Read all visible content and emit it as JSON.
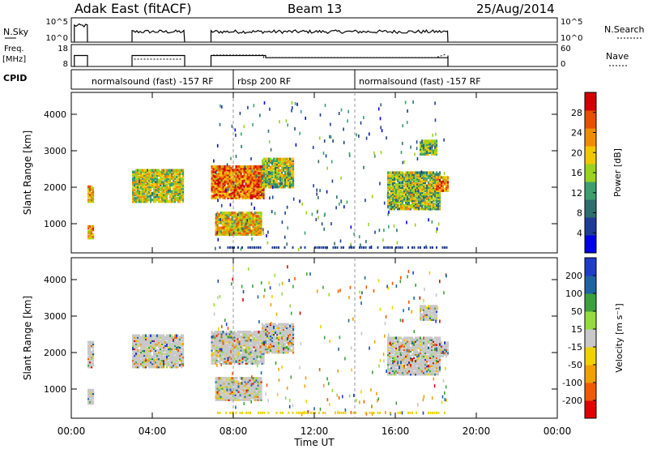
{
  "header": {
    "station": "Adak East (fitACF)",
    "beam": "Beam 13",
    "date": "25/Aug/2014"
  },
  "panels": {
    "nsky": {
      "label": "N.Sky",
      "ticks": [
        "10^5",
        "10^0"
      ],
      "right_label": "N.Search",
      "right_ticks": [
        "10^5",
        "10^0"
      ]
    },
    "freq": {
      "label_line1": "Freq.",
      "label_line2": "[MHz]",
      "ticks": [
        "18",
        "8"
      ],
      "right_label": "Nave",
      "right_ticks": [
        "60",
        "0"
      ]
    },
    "cpid": {
      "label": "CPID",
      "segments": [
        {
          "text": "normalsound (fast) -157 RF",
          "start": 0.8
        },
        {
          "text": "rbsp 200 RF",
          "start": 8.0
        },
        {
          "text": "normalsound (fast) -157 RF",
          "start": 14.0
        }
      ]
    }
  },
  "colors": {
    "power": [
      "#0000e6",
      "#1e3c96",
      "#2e6e6e",
      "#3e9e6e",
      "#9ad21e",
      "#f0c800",
      "#f08c00",
      "#e65000",
      "#d20000"
    ],
    "velocity": [
      "#e00000",
      "#f05a00",
      "#f0a000",
      "#f0d200",
      "#c8c8c8",
      "#96dc3c",
      "#3ca03c",
      "#1e64a0",
      "#1e3cc8"
    ]
  },
  "chart_data": [
    {
      "type": "heatmap",
      "ylabel": "Slant Range [km]",
      "yticks": [
        "4000",
        "3000",
        "2000",
        "1000"
      ],
      "ylim": [
        200,
        4600
      ],
      "xlim": [
        0,
        24
      ],
      "colorbar": {
        "label": "Power [dB]",
        "ticks": [
          "28",
          "24",
          "20",
          "16",
          "12",
          "8",
          "4"
        ],
        "range": [
          0,
          32
        ]
      },
      "regions": [
        {
          "x": [
            0.8,
            1.1
          ],
          "y": [
            1600,
            2050
          ],
          "level": 0.65
        },
        {
          "x": [
            0.8,
            1.1
          ],
          "y": [
            600,
            950
          ],
          "level": 0.7
        },
        {
          "x": [
            3.0,
            5.5
          ],
          "y": [
            1600,
            2500
          ],
          "level": 0.55
        },
        {
          "x": [
            6.9,
            9.5
          ],
          "y": [
            1700,
            2600
          ],
          "level": 0.8
        },
        {
          "x": [
            7.1,
            9.4
          ],
          "y": [
            700,
            1300
          ],
          "level": 0.65
        },
        {
          "x": [
            9.4,
            11.0
          ],
          "y": [
            2000,
            2800
          ],
          "level": 0.5
        },
        {
          "x": [
            15.6,
            18.2
          ],
          "y": [
            1400,
            2400
          ],
          "level": 0.5
        },
        {
          "x": [
            17.2,
            18.0
          ],
          "y": [
            2900,
            3300
          ],
          "level": 0.45
        },
        {
          "x": [
            18.0,
            18.6
          ],
          "y": [
            1900,
            2300
          ],
          "level": 0.75
        }
      ]
    },
    {
      "type": "heatmap",
      "ylabel": "Slant Range [km]",
      "xlabel": "Time UT",
      "yticks": [
        "4000",
        "3000",
        "2000",
        "1000"
      ],
      "ylim": [
        200,
        4600
      ],
      "xlim": [
        0,
        24
      ],
      "xticks": [
        "00:00",
        "04:00",
        "08:00",
        "12:00",
        "16:00",
        "20:00",
        "00:00"
      ],
      "colorbar": {
        "label": "Velocity [m s⁻¹]",
        "ticks": [
          "200",
          "100",
          "50",
          "15",
          "-15",
          "-50",
          "-100",
          "-200"
        ],
        "range": [
          -250,
          250
        ]
      },
      "regions": [
        {
          "x": [
            0.8,
            1.1
          ],
          "y": [
            1600,
            2300
          ],
          "level": 0.5
        },
        {
          "x": [
            0.8,
            1.1
          ],
          "y": [
            600,
            1000
          ],
          "level": 0.5
        },
        {
          "x": [
            3.0,
            5.5
          ],
          "y": [
            1600,
            2500
          ],
          "level": 0.5
        },
        {
          "x": [
            6.9,
            9.5
          ],
          "y": [
            1700,
            2600
          ],
          "level": 0.5
        },
        {
          "x": [
            7.1,
            9.4
          ],
          "y": [
            700,
            1300
          ],
          "level": 0.5
        },
        {
          "x": [
            9.4,
            11.0
          ],
          "y": [
            2000,
            2800
          ],
          "level": 0.45
        },
        {
          "x": [
            15.6,
            18.2
          ],
          "y": [
            1400,
            2400
          ],
          "level": 0.55
        },
        {
          "x": [
            17.2,
            18.0
          ],
          "y": [
            2900,
            3300
          ],
          "level": 0.65
        },
        {
          "x": [
            18.0,
            18.6
          ],
          "y": [
            1900,
            2300
          ],
          "level": 0.5
        }
      ]
    }
  ]
}
